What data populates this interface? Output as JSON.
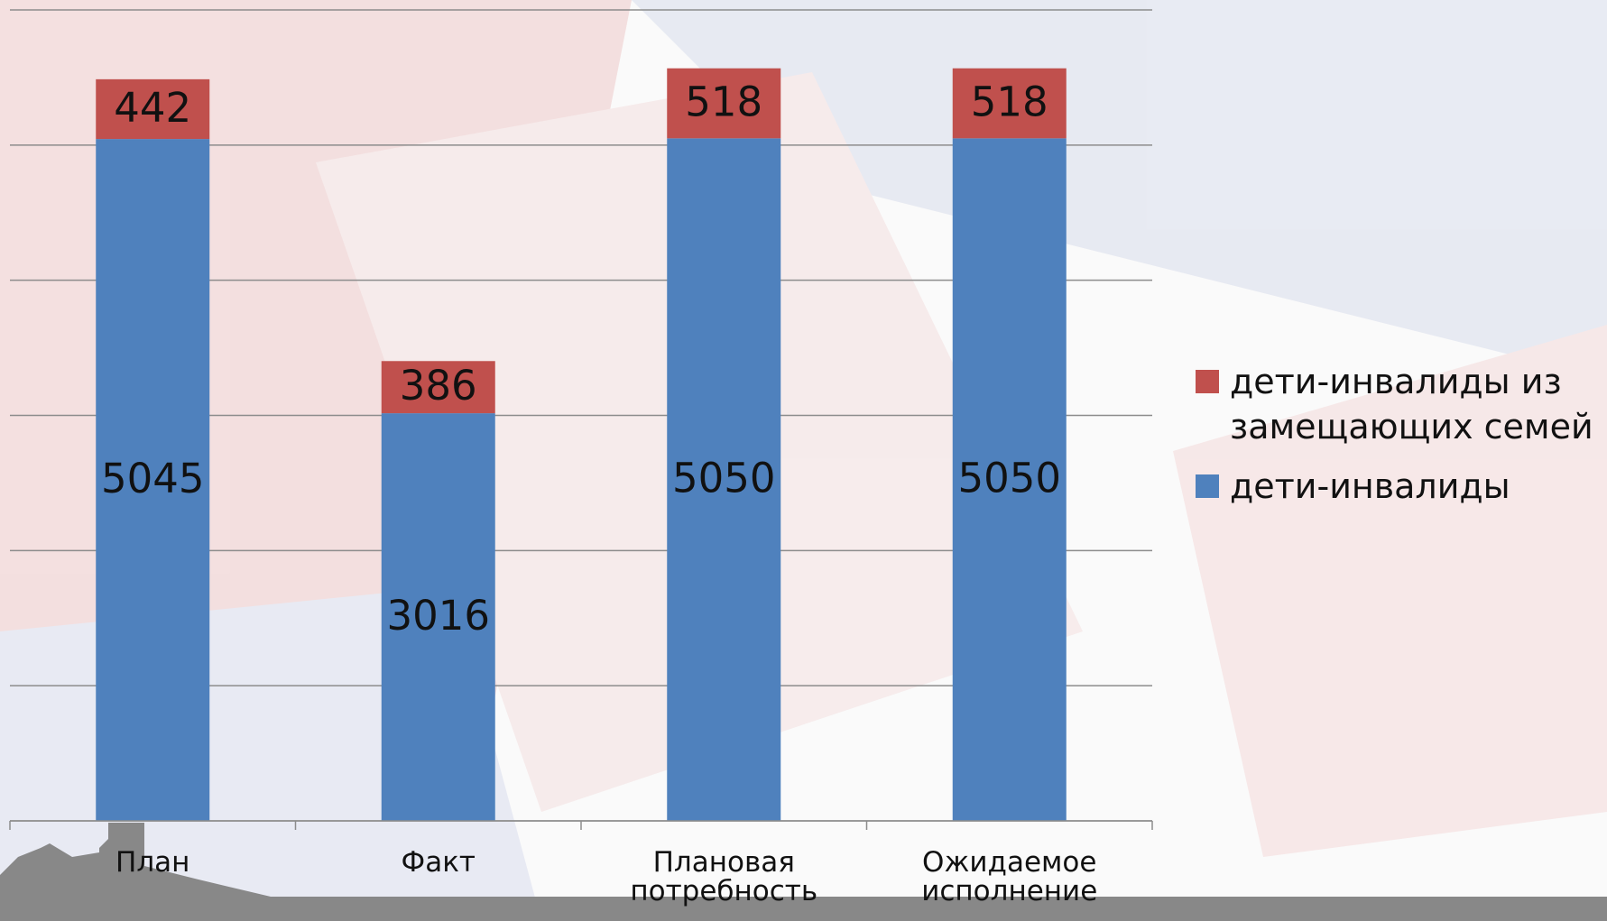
{
  "chart_data": {
    "type": "stacked-bar",
    "categories": [
      "План",
      "Факт",
      "Плановая потребность",
      "Ожидаемое исполнение"
    ],
    "series": [
      {
        "name": "дети-инвалиды",
        "color": "#4f81bd",
        "values": [
          5045,
          3016,
          5050,
          5050
        ]
      },
      {
        "name": "дети-инвалиды из замещающих семей",
        "color": "#c0504d",
        "values": [
          442,
          386,
          518,
          518
        ]
      }
    ],
    "ylim": [
      0,
      6000
    ],
    "yticks": [
      0,
      1000,
      2000,
      3000,
      4000,
      5000,
      6000
    ],
    "grid": true,
    "legend": "right"
  }
}
